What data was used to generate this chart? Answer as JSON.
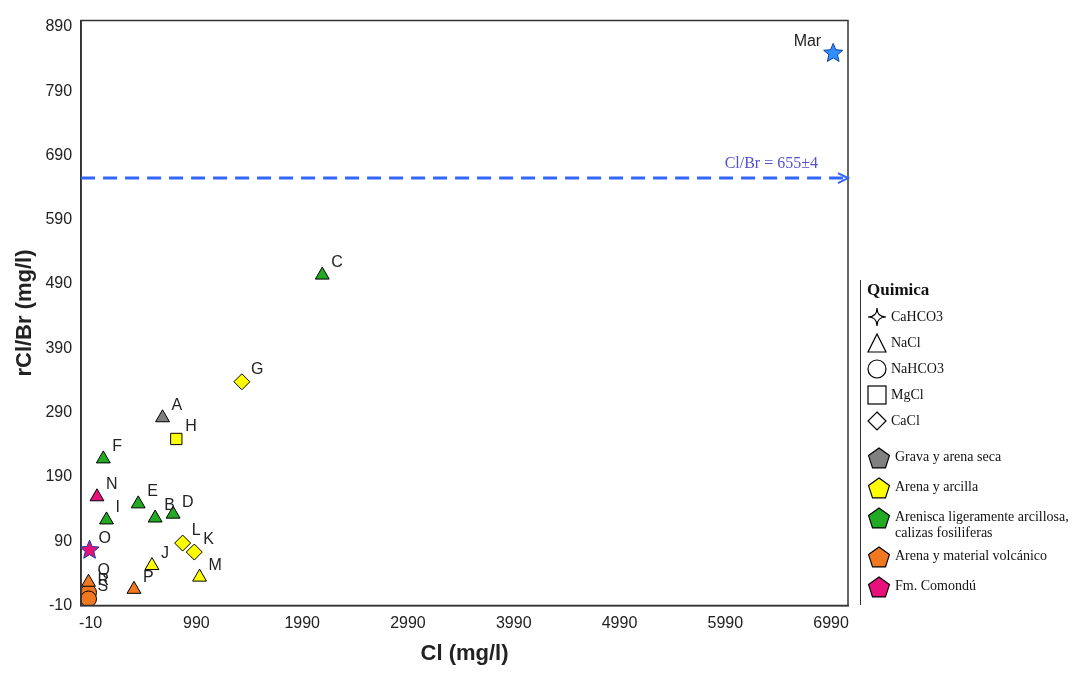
{
  "chart_data": {
    "type": "scatter",
    "xlabel": "Cl (mg/l)",
    "ylabel": "rCl/Br (mg/l)",
    "legend_title": "Quimica",
    "xlim": [
      -100,
      7150
    ],
    "ylim": [
      -10,
      900
    ],
    "xticks": [
      -10,
      990,
      1990,
      2990,
      3990,
      4990,
      5990,
      6990
    ],
    "yticks": [
      -10,
      90,
      190,
      290,
      390,
      490,
      590,
      690,
      790,
      890
    ],
    "grid": false,
    "legend": "right",
    "series": [
      {
        "name": "Grava y arena seca",
        "color": "#808080",
        "marker": "triangle",
        "x": [
          670
        ],
        "values": [
          282
        ]
      },
      {
        "name": "Arena y arcilla",
        "color": "#ffff00",
        "marker": "triangle",
        "x": [
          570,
          1020
        ],
        "values": [
          52,
          34
        ]
      },
      {
        "color": "#ffff00",
        "marker": "square",
        "x": [
          800
        ],
        "values": [
          249
        ]
      },
      {
        "color": "#ffff00",
        "marker": "diamond",
        "x": [
          1420,
          860,
          970
        ],
        "values": [
          338,
          87,
          73
        ]
      },
      {
        "name": "Arenisca ligeramente arcillosa, calizas fosiliferas",
        "color": "#22aa22",
        "marker": "triangle",
        "x": [
          2180,
          110,
          440,
          600,
          770,
          140
        ],
        "values": [
          504,
          218,
          148,
          126,
          132,
          123
        ]
      },
      {
        "name": "Arena y material volcánico",
        "color": "#f07820",
        "marker": "triangle",
        "x": [
          -30,
          400
        ],
        "values": [
          26,
          15
        ]
      },
      {
        "color": "#f07820",
        "marker": "circle",
        "x": [
          -30,
          -30
        ],
        "values": [
          10,
          0
        ]
      },
      {
        "name": "Fm. Comondú",
        "color": "#e8107a",
        "marker": "triangle",
        "x": [
          50
        ],
        "values": [
          159
        ]
      },
      {
        "color": "#e8107a",
        "marker": "star",
        "x": [
          -20
        ],
        "values": [
          76
        ]
      },
      {
        "color": "#2f8fff",
        "marker": "star",
        "x": [
          7010
        ],
        "values": [
          849
        ]
      }
    ],
    "ref_lines": [
      {
        "axis": "y",
        "value": 655,
        "label": "Cl/Br = 655±4",
        "color": "#3366ff",
        "line_style": "dashed"
      }
    ],
    "annotations": [
      "CaHCO3",
      "NaCl",
      "NaHCO3",
      "MgCl",
      "CaCl",
      {
        "text": "Mar",
        "x": 7010,
        "y": 849
      },
      {
        "text": "A",
        "x": 670,
        "y": 282
      },
      {
        "text": "B",
        "x": 600,
        "y": 126
      },
      {
        "text": "C",
        "x": 2180,
        "y": 504
      },
      {
        "text": "D",
        "x": 770,
        "y": 132
      },
      {
        "text": "E",
        "x": 440,
        "y": 148
      },
      {
        "text": "F",
        "x": 110,
        "y": 218
      },
      {
        "text": "G",
        "x": 1420,
        "y": 338
      },
      {
        "text": "H",
        "x": 800,
        "y": 249
      },
      {
        "text": "I",
        "x": 140,
        "y": 123
      },
      {
        "text": "J",
        "x": 570,
        "y": 52
      },
      {
        "text": "K",
        "x": 970,
        "y": 73
      },
      {
        "text": "L",
        "x": 860,
        "y": 87
      },
      {
        "text": "M",
        "x": 1020,
        "y": 34
      },
      {
        "text": "N",
        "x": 50,
        "y": 159
      },
      {
        "text": "O",
        "x": -20,
        "y": 76
      },
      {
        "text": "P",
        "x": 400,
        "y": 15
      },
      {
        "text": "Q",
        "x": -30,
        "y": 26
      },
      {
        "text": "R",
        "x": -30,
        "y": 10
      },
      {
        "text": "S",
        "x": -30,
        "y": 0
      }
    ]
  }
}
